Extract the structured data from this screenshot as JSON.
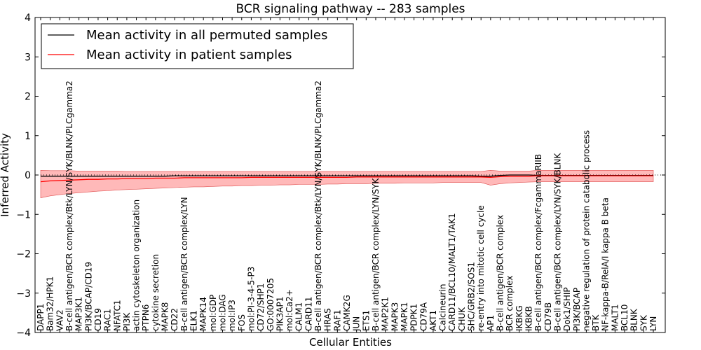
{
  "chart_data": {
    "type": "line",
    "title": "BCR signaling pathway -- 283 samples",
    "xlabel": "Cellular Entities",
    "ylabel": "Inferred Activity",
    "ylim": [
      -4,
      4
    ],
    "yticks": [
      -4,
      -3,
      -2,
      -1,
      0,
      1,
      2,
      3,
      4
    ],
    "ytick_labels": [
      "−4",
      "−3",
      "−2",
      "−1",
      "0",
      "1",
      "2",
      "3",
      "4"
    ],
    "legend_position": "top-left",
    "categories": [
      "DAPP1",
      "Bam32/HPK1",
      "VAV2",
      "B-cell antigen/BCR complex/Btk/LYN/SYK/BLNK/PLCgamma2",
      "MAP3K1",
      "PI3K/BCAP/CD19",
      "CD19",
      "RAC1",
      "NFATC1",
      "PI3K",
      "actin cytoskeleton organization",
      "PTPN6",
      "cytokine secretion",
      "MAPK8",
      "CD22",
      "B-cell antigen/BCR complex/LYN",
      "ELK1",
      "MAPK14",
      "mol:GDP",
      "mol:DAG",
      "mol:IP3",
      "FOS",
      "mol:PI-3-4-5-P3",
      "CD72/SHP1",
      "GO:0007205",
      "PIK3AP1",
      "mol:Ca2+",
      "CALM1",
      "CARD11",
      "B-cell antigen/BCR complex/Btk/LYN/SYK/BLNK/PLCgamma2",
      "HRAS",
      "RAF1",
      "CAMK2G",
      "JUN",
      "ETS1",
      "B-cell antigen/BCR complex/LYN/SYK",
      "MAP2K1",
      "MAPK3",
      "MAPK1",
      "PDPK1",
      "CD79A",
      "AKT1",
      "Calcineurin",
      "CARD11/BCL10/MALT1/TAK1",
      "CHUK",
      "SHC/GRB2/SOS1",
      "re-entry into mitotic cell cycle",
      "AP1",
      "B-cell antigen/BCR complex",
      "BCR complex",
      "IKBKG",
      "IKBKB",
      "B-cell antigen/BCR complex/FcgammaRIIB",
      "CD79B",
      "B-cell antigen/BCR complex/LYN/SYK/BLNK",
      "Dok1/SHIP",
      "PI3K/BCAP",
      "negative regulation of protein catabolic process",
      "BTK",
      "NF-kappa-B/RelA/I kappa B beta",
      "MALT1",
      "BCL10",
      "BLNK",
      "SYK",
      "LYN"
    ],
    "series": [
      {
        "name": "Mean activity in all permuted samples",
        "color": "#000000",
        "values": [
          -0.03,
          -0.03,
          -0.03,
          -0.03,
          -0.03,
          -0.03,
          -0.03,
          -0.03,
          -0.03,
          -0.03,
          -0.03,
          -0.03,
          -0.03,
          -0.03,
          -0.02,
          -0.02,
          -0.02,
          -0.02,
          -0.02,
          -0.02,
          -0.02,
          -0.02,
          -0.02,
          -0.02,
          -0.02,
          -0.02,
          -0.02,
          -0.02,
          -0.02,
          -0.02,
          -0.02,
          -0.02,
          -0.02,
          -0.02,
          -0.02,
          -0.02,
          -0.02,
          -0.02,
          -0.02,
          -0.02,
          -0.02,
          -0.02,
          -0.02,
          -0.02,
          -0.02,
          -0.02,
          -0.03,
          -0.03,
          -0.01,
          0.0,
          0.0,
          0.0,
          -0.01,
          -0.01,
          -0.01,
          -0.01,
          -0.01,
          -0.01,
          -0.01,
          -0.01,
          -0.01,
          -0.01,
          -0.01,
          -0.01,
          -0.01
        ]
      },
      {
        "name": "Mean activity in patient samples",
        "color": "#ff0000",
        "values": [
          -0.17,
          -0.15,
          -0.14,
          -0.13,
          -0.12,
          -0.11,
          -0.11,
          -0.1,
          -0.1,
          -0.09,
          -0.09,
          -0.09,
          -0.08,
          -0.08,
          -0.08,
          -0.07,
          -0.07,
          -0.07,
          -0.07,
          -0.07,
          -0.07,
          -0.07,
          -0.06,
          -0.06,
          -0.06,
          -0.06,
          -0.06,
          -0.06,
          -0.06,
          -0.06,
          -0.06,
          -0.06,
          -0.06,
          -0.05,
          -0.05,
          -0.05,
          -0.05,
          -0.05,
          -0.05,
          -0.05,
          -0.05,
          -0.05,
          -0.05,
          -0.05,
          -0.05,
          -0.05,
          -0.05,
          -0.06,
          -0.04,
          -0.03,
          -0.03,
          -0.03,
          -0.02,
          -0.02,
          -0.02,
          -0.02,
          -0.02,
          -0.02,
          -0.02,
          -0.02,
          -0.02,
          -0.02,
          -0.02,
          -0.02,
          -0.02
        ],
        "band_upper": [
          0.12,
          0.11,
          0.11,
          0.11,
          0.1,
          0.1,
          0.1,
          0.1,
          0.1,
          0.09,
          0.09,
          0.09,
          0.09,
          0.09,
          0.09,
          0.09,
          0.09,
          0.09,
          0.09,
          0.09,
          0.09,
          0.09,
          0.09,
          0.09,
          0.09,
          0.09,
          0.09,
          0.09,
          0.09,
          0.09,
          0.09,
          0.09,
          0.09,
          0.09,
          0.09,
          0.09,
          0.09,
          0.09,
          0.09,
          0.09,
          0.09,
          0.09,
          0.09,
          0.09,
          0.09,
          0.09,
          0.09,
          0.12,
          0.1,
          0.1,
          0.1,
          0.1,
          0.12,
          0.12,
          0.12,
          0.12,
          0.12,
          0.12,
          0.12,
          0.12,
          0.12,
          0.12,
          0.12,
          0.12,
          0.12
        ],
        "band_lower": [
          -0.58,
          -0.53,
          -0.5,
          -0.47,
          -0.45,
          -0.43,
          -0.41,
          -0.4,
          -0.38,
          -0.37,
          -0.36,
          -0.35,
          -0.34,
          -0.33,
          -0.32,
          -0.31,
          -0.3,
          -0.3,
          -0.29,
          -0.28,
          -0.28,
          -0.27,
          -0.27,
          -0.26,
          -0.26,
          -0.25,
          -0.25,
          -0.24,
          -0.24,
          -0.24,
          -0.23,
          -0.23,
          -0.22,
          -0.22,
          -0.22,
          -0.21,
          -0.21,
          -0.21,
          -0.2,
          -0.2,
          -0.2,
          -0.2,
          -0.19,
          -0.19,
          -0.19,
          -0.19,
          -0.19,
          -0.26,
          -0.22,
          -0.2,
          -0.19,
          -0.18,
          -0.17,
          -0.17,
          -0.17,
          -0.17,
          -0.17,
          -0.17,
          -0.17,
          -0.17,
          -0.17,
          -0.17,
          -0.17,
          -0.17,
          -0.17
        ]
      }
    ],
    "band_color": "#ff7f7f",
    "zero_line": true
  }
}
